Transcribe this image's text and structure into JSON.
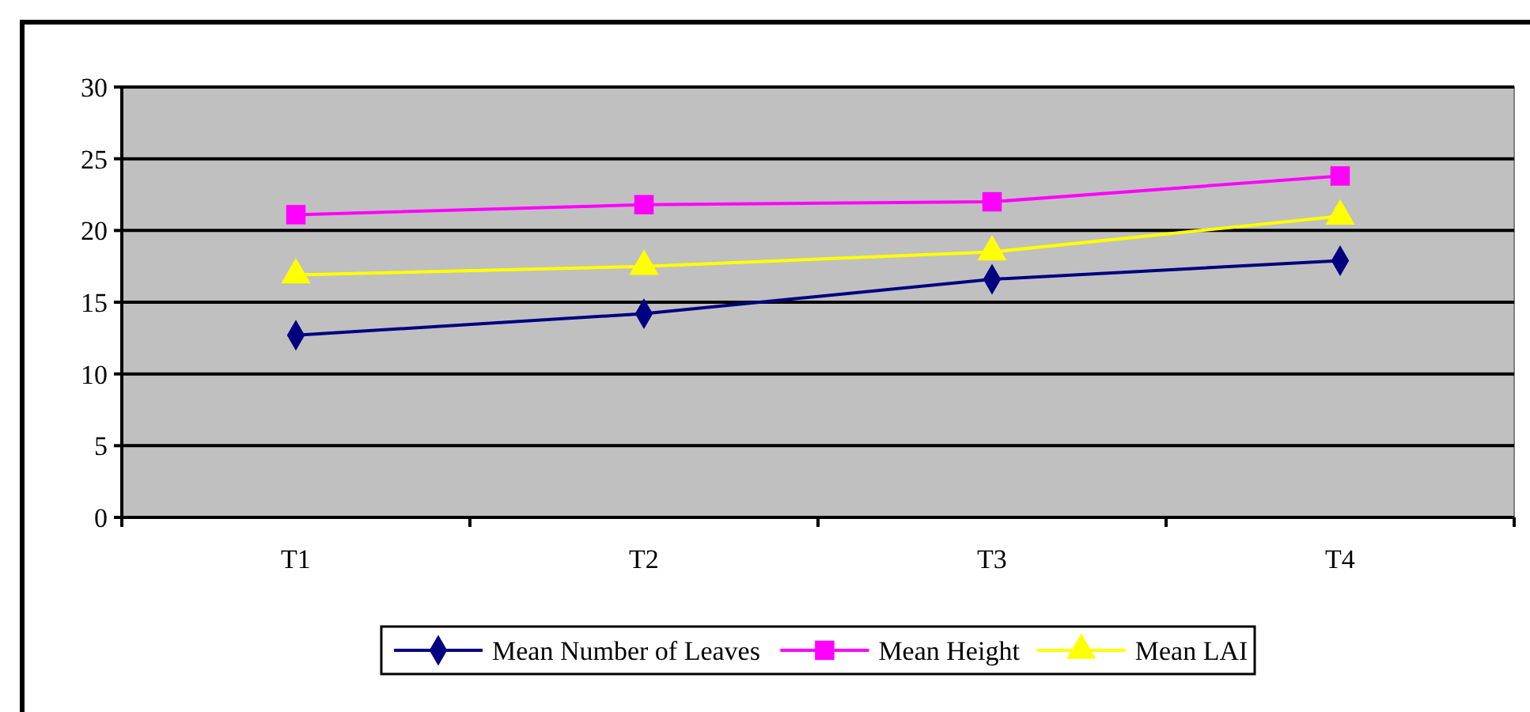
{
  "chart_data": {
    "type": "line",
    "categories": [
      "T1",
      "T2",
      "T3",
      "T4"
    ],
    "ylim": [
      0,
      30
    ],
    "yticks": [
      0,
      5,
      10,
      15,
      20,
      25,
      30
    ],
    "grid": "y",
    "legend": "bottom",
    "series": [
      {
        "name": "Mean Number of Leaves",
        "color": "#000080",
        "marker": "diamond",
        "values": [
          12.7,
          14.2,
          16.6,
          17.9
        ]
      },
      {
        "name": "Mean Height",
        "color": "#ff00ff",
        "marker": "square",
        "values": [
          21.1,
          21.8,
          22.0,
          23.8
        ]
      },
      {
        "name": "Mean LAI",
        "color": "#ffff00",
        "marker": "triangle",
        "values": [
          16.9,
          17.5,
          18.5,
          21.0
        ]
      }
    ]
  }
}
